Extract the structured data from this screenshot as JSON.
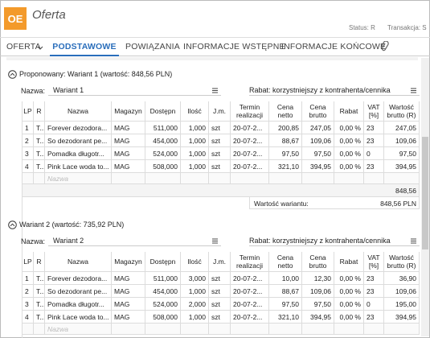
{
  "header": {
    "icon": "OE",
    "title": "Oferta",
    "status": "Status: R",
    "transaction": "Transakcja: S"
  },
  "tabs": [
    "OFERTA",
    "PODSTAWOWE",
    "POWIĄZANIA",
    "INFORMACJE WSTĘPNE",
    "INFORMACJE KOŃCOWE"
  ],
  "active_tab": 1,
  "columns": [
    "LP",
    "R",
    "Nazwa",
    "Magazyn",
    "Dostępn",
    "Ilość",
    "J.m.",
    "Termin realizacji",
    "Cena netto",
    "Cena brutto",
    "Rabat",
    "VAT [%]",
    "Wartość brutto (R)"
  ],
  "variants": [
    {
      "title": "Proponowany: Wariant 1 (wartość: 848,56 PLN)",
      "name_label": "Nazwa:",
      "name": "Wariant 1",
      "discount": "Rabat: korzystniejszy z kontrahenta/cennika",
      "rows": [
        [
          "1",
          "T...",
          "Forever dezodora...",
          "MAG",
          "511,000",
          "1,000",
          "szt",
          "20-07-2...",
          "200,85",
          "247,05",
          "0,00 %",
          "23",
          "247,05"
        ],
        [
          "2",
          "T...",
          "So dezodorant pe...",
          "MAG",
          "454,000",
          "1,000",
          "szt",
          "20-07-2...",
          "88,67",
          "109,06",
          "0,00 %",
          "23",
          "109,06"
        ],
        [
          "3",
          "T...",
          "Pomadka długotr...",
          "MAG",
          "524,000",
          "1,000",
          "szt",
          "20-07-2...",
          "97,50",
          "97,50",
          "0,00 %",
          "0",
          "97,50"
        ],
        [
          "4",
          "T...",
          "Pink Lace woda to...",
          "MAG",
          "508,000",
          "1,000",
          "szt",
          "20-07-2...",
          "321,10",
          "394,95",
          "0,00 %",
          "23",
          "394,95"
        ]
      ],
      "placeholder": "Nazwa",
      "total": "848,56",
      "value_label": "Wartość wariantu:",
      "value": "848,56 PLN"
    },
    {
      "title": "Wariant 2 (wartość: 735,92 PLN)",
      "name_label": "Nazwa:",
      "name": "Wariant 2",
      "discount": "Rabat: korzystniejszy z kontrahenta/cennika",
      "rows": [
        [
          "1",
          "T...",
          "Forever dezodora...",
          "MAG",
          "511,000",
          "3,000",
          "szt",
          "20-07-2...",
          "10,00",
          "12,30",
          "0,00 %",
          "23",
          "36,90"
        ],
        [
          "2",
          "T...",
          "So dezodorant pe...",
          "MAG",
          "454,000",
          "1,000",
          "szt",
          "20-07-2...",
          "88,67",
          "109,06",
          "0,00 %",
          "23",
          "109,06"
        ],
        [
          "3",
          "T...",
          "Pomadka długotr...",
          "MAG",
          "524,000",
          "2,000",
          "szt",
          "20-07-2...",
          "97,50",
          "97,50",
          "0,00 %",
          "0",
          "195,00"
        ],
        [
          "4",
          "T...",
          "Pink Lace woda to...",
          "MAG",
          "508,000",
          "1,000",
          "szt",
          "20-07-2...",
          "321,10",
          "394,95",
          "0,00 %",
          "23",
          "394,95"
        ]
      ],
      "placeholder": "Nazwa"
    }
  ]
}
